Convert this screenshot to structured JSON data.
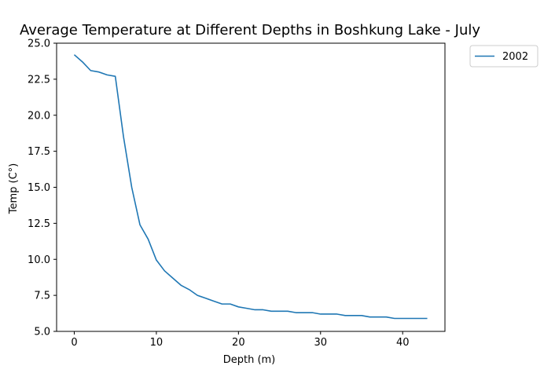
{
  "chart_data": {
    "type": "line",
    "title": "Average Temperature at Different Depths in Boshkung Lake - July",
    "xlabel": "Depth (m)",
    "ylabel": "Temp (C°)",
    "xlim": [
      -2.15,
      45.15
    ],
    "ylim": [
      5.0,
      25.0
    ],
    "xticks": [
      0,
      10,
      20,
      30,
      40
    ],
    "xtick_labels": [
      "0",
      "10",
      "20",
      "30",
      "40"
    ],
    "yticks": [
      5.0,
      7.5,
      10.0,
      12.5,
      15.0,
      17.5,
      20.0,
      22.5,
      25.0
    ],
    "ytick_labels": [
      "5.0",
      "7.5",
      "10.0",
      "12.5",
      "15.0",
      "17.5",
      "20.0",
      "22.5",
      "25.0"
    ],
    "grid": false,
    "legend_position": "outside-top-right",
    "series": [
      {
        "name": "2002",
        "color": "#1f77b4",
        "x": [
          0,
          1,
          2,
          3,
          4,
          5,
          6,
          7,
          8,
          9,
          10,
          11,
          12,
          13,
          14,
          15,
          16,
          17,
          18,
          19,
          20,
          21,
          22,
          23,
          24,
          25,
          26,
          27,
          28,
          29,
          30,
          31,
          32,
          33,
          34,
          35,
          36,
          37,
          38,
          39,
          40,
          41,
          42,
          43
        ],
        "y": [
          24.2,
          23.7,
          23.1,
          23.0,
          22.8,
          22.7,
          18.5,
          15.0,
          12.4,
          11.4,
          9.95,
          9.2,
          8.7,
          8.2,
          7.9,
          7.5,
          7.3,
          7.1,
          6.9,
          6.9,
          6.7,
          6.6,
          6.5,
          6.5,
          6.4,
          6.4,
          6.4,
          6.3,
          6.3,
          6.3,
          6.2,
          6.2,
          6.2,
          6.1,
          6.1,
          6.1,
          6.0,
          6.0,
          6.0,
          5.9,
          5.9,
          5.9,
          5.9,
          5.9
        ]
      }
    ]
  }
}
